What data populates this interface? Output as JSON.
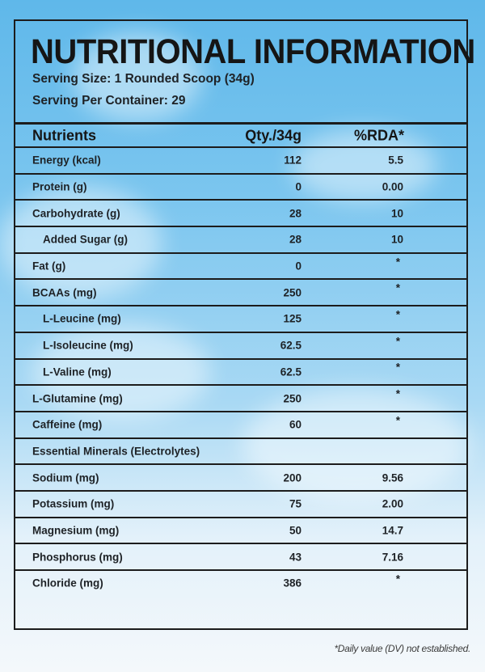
{
  "label": {
    "title": "NUTRITIONAL INFORMATION",
    "serving_size": "Serving Size: 1 Rounded Scoop (34g)",
    "servings_per_container": "Serving Per Container: 29",
    "header": {
      "nutrient": "Nutrients",
      "qty": "Qty./34g",
      "rda": "%RDA*"
    },
    "rows": [
      {
        "name": "Energy (kcal)",
        "qty": "112",
        "rda": "5.5",
        "indent": false
      },
      {
        "name": "Protein (g)",
        "qty": "0",
        "rda": "0.00",
        "indent": false
      },
      {
        "name": "Carbohydrate (g)",
        "qty": "28",
        "rda": "10",
        "indent": false
      },
      {
        "name": "Added Sugar (g)",
        "qty": "28",
        "rda": "10",
        "indent": true
      },
      {
        "name": "Fat (g)",
        "qty": "0",
        "rda": "*",
        "indent": false
      },
      {
        "name": "BCAAs (mg)",
        "qty": "250",
        "rda": "*",
        "indent": false
      },
      {
        "name": "L-Leucine (mg)",
        "qty": "125",
        "rda": "*",
        "indent": true
      },
      {
        "name": "L-Isoleucine (mg)",
        "qty": "62.5",
        "rda": "*",
        "indent": true
      },
      {
        "name": "L-Valine (mg)",
        "qty": "62.5",
        "rda": "*",
        "indent": true
      },
      {
        "name": "L-Glutamine (mg)",
        "qty": "250",
        "rda": "*",
        "indent": false
      },
      {
        "name": "Caffeine (mg)",
        "qty": "60",
        "rda": "*",
        "indent": false
      },
      {
        "name": "Essential Minerals (Electrolytes)",
        "qty": "",
        "rda": "",
        "indent": false
      },
      {
        "name": "Sodium (mg)",
        "qty": "200",
        "rda": "9.56",
        "indent": false
      },
      {
        "name": "Potassium (mg)",
        "qty": "75",
        "rda": "2.00",
        "indent": false
      },
      {
        "name": "Magnesium (mg)",
        "qty": "50",
        "rda": "14.7",
        "indent": false
      },
      {
        "name": "Phosphorus (mg)",
        "qty": "43",
        "rda": "7.16",
        "indent": false
      },
      {
        "name": "Chloride (mg)",
        "qty": "386",
        "rda": "*",
        "indent": false
      }
    ],
    "footnote": "*Daily value (DV) not established."
  },
  "colors": {
    "sky_top": "#5fb8ea",
    "sky_bottom": "#f4f8fb",
    "border": "#1c1c1c",
    "text": "#1e2226"
  }
}
